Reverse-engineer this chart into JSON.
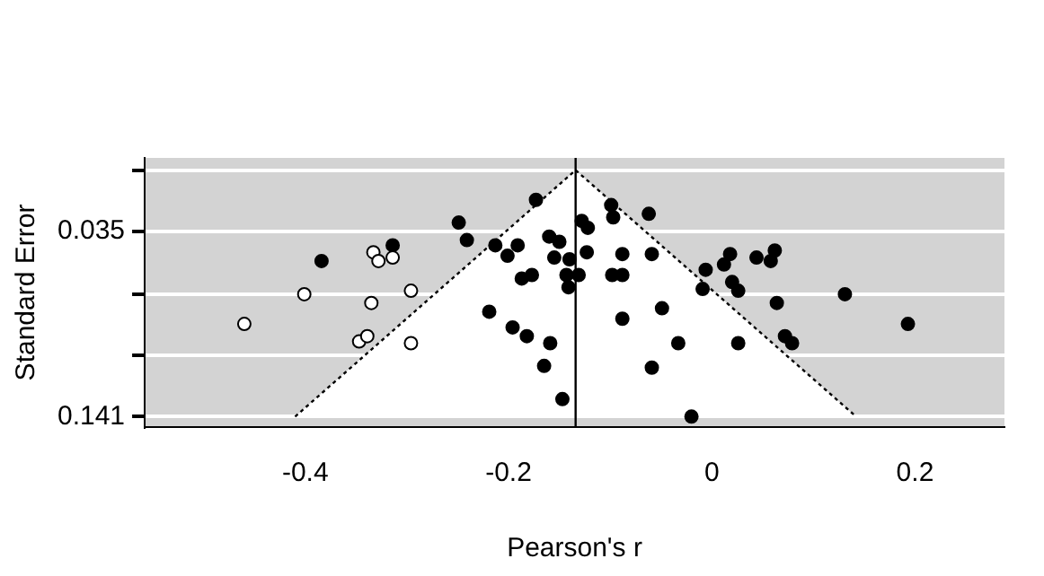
{
  "chart_data": {
    "type": "scatter",
    "xlabel": "Pearson's r",
    "ylabel": "Standard Error",
    "xlim": [
      -0.558,
      0.288
    ],
    "xticks": [
      -0.4,
      -0.2,
      0,
      0.2
    ],
    "ylim": [
      0.147,
      -0.007
    ],
    "yticks": [
      {
        "value": 0,
        "label": null
      },
      0.035,
      {
        "value": 0.071,
        "label": null
      },
      {
        "value": 0.106,
        "label": null
      },
      0.141
    ],
    "grid": "y",
    "marker": "circle",
    "ref_lines": [
      {
        "axis": "x",
        "value": -0.134,
        "color": "#000000"
      }
    ],
    "series": [
      {
        "type": "line",
        "color": "#000000",
        "line_style": "dotted",
        "marker": "none",
        "x": [
          -0.41,
          -0.134,
          0.142
        ],
        "values": [
          0.141,
          0,
          0.141
        ]
      },
      {
        "color": "#ffffff",
        "x": [
          -0.46,
          -0.401,
          -0.333,
          -0.328,
          -0.314,
          -0.335,
          -0.296,
          -0.347,
          -0.339,
          -0.296
        ],
        "values": [
          0.088,
          0.071,
          0.047,
          0.052,
          0.05,
          0.076,
          0.069,
          0.098,
          0.095,
          0.099
        ]
      },
      {
        "color": "#000000",
        "x": [
          -0.384,
          -0.314,
          -0.249,
          -0.241,
          -0.213,
          -0.201,
          -0.191,
          -0.187,
          -0.219,
          -0.196,
          -0.182,
          -0.173,
          -0.177,
          -0.159,
          -0.165,
          -0.147,
          -0.16,
          -0.15,
          -0.155,
          -0.14,
          -0.143,
          -0.131,
          -0.141,
          -0.128,
          -0.122,
          -0.123,
          -0.099,
          -0.097,
          -0.062,
          -0.088,
          -0.098,
          -0.088,
          -0.059,
          -0.088,
          -0.049,
          -0.033,
          -0.059,
          -0.02,
          -0.006,
          -0.009,
          0.012,
          0.018,
          0.02,
          0.026,
          0.026,
          0.044,
          0.058,
          0.062,
          0.064,
          0.072,
          0.079,
          0.131,
          0.193
        ],
        "values": [
          0.052,
          0.043,
          0.03,
          0.04,
          0.043,
          0.049,
          0.043,
          0.062,
          0.081,
          0.09,
          0.095,
          0.017,
          0.06,
          0.099,
          0.112,
          0.131,
          0.038,
          0.041,
          0.05,
          0.051,
          0.06,
          0.06,
          0.067,
          0.029,
          0.033,
          0.047,
          0.02,
          0.027,
          0.025,
          0.048,
          0.06,
          0.06,
          0.048,
          0.085,
          0.079,
          0.099,
          0.113,
          0.141,
          0.057,
          0.068,
          0.054,
          0.048,
          0.064,
          0.069,
          0.099,
          0.05,
          0.052,
          0.046,
          0.076,
          0.095,
          0.099,
          0.071,
          0.088
        ]
      }
    ]
  }
}
